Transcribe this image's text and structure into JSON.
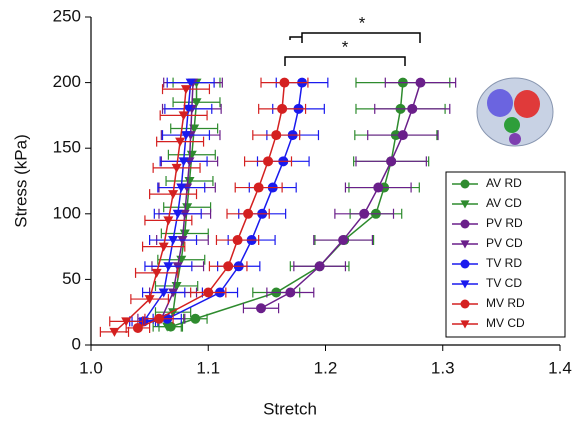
{
  "chart_data": {
    "type": "line",
    "xlabel": "Stretch",
    "ylabel": "Stress (kPa)",
    "xlim": [
      1.0,
      1.4
    ],
    "xticks": [
      {
        "value": 1,
        "label": "1.0"
      },
      1.1,
      1.2,
      1.3,
      1.4
    ],
    "ylim": [
      0,
      250
    ],
    "yticks": [
      0,
      50,
      100,
      150,
      200,
      250
    ],
    "annotations": [
      "*",
      "*"
    ],
    "legend": "lower right",
    "series": [
      {
        "name": "AV RD",
        "color": "#2e8b2e",
        "marker": "circle",
        "y": [
          14,
          20,
          40,
          60,
          80,
          100,
          120,
          140,
          160,
          180,
          200
        ],
        "x": [
          1.068,
          1.089,
          1.158,
          1.195,
          1.216,
          1.243,
          1.25,
          1.256,
          1.26,
          1.264,
          1.266
        ],
        "xerr": [
          0.01,
          0.01,
          0.02,
          0.025,
          0.025,
          0.022,
          0.03,
          0.032,
          0.035,
          0.038,
          0.04
        ]
      },
      {
        "name": "AV CD",
        "color": "#2e8b2e",
        "marker": "triangle",
        "y": [
          14,
          25,
          45,
          65,
          85,
          105,
          125,
          145,
          165,
          185,
          200
        ],
        "x": [
          1.065,
          1.07,
          1.073,
          1.077,
          1.08,
          1.082,
          1.084,
          1.086,
          1.088,
          1.09,
          1.09
        ],
        "xerr": [
          0.012,
          0.015,
          0.018,
          0.02,
          0.02,
          0.02,
          0.02,
          0.02,
          0.02,
          0.02,
          0.02
        ]
      },
      {
        "name": "PV RD",
        "color": "#6a1f8a",
        "marker": "circle",
        "y": [
          28,
          40,
          60,
          80,
          100,
          120,
          140,
          160,
          180,
          200
        ],
        "x": [
          1.145,
          1.17,
          1.195,
          1.215,
          1.233,
          1.245,
          1.256,
          1.266,
          1.274,
          1.281
        ],
        "xerr": [
          0.015,
          0.02,
          0.022,
          0.025,
          0.025,
          0.028,
          0.03,
          0.03,
          0.032,
          0.03
        ]
      },
      {
        "name": "PV CD",
        "color": "#6a1f8a",
        "marker": "triangle",
        "y": [
          20,
          40,
          60,
          80,
          100,
          120,
          140,
          160,
          180,
          200
        ],
        "x": [
          1.06,
          1.07,
          1.074,
          1.078,
          1.08,
          1.082,
          1.084,
          1.085,
          1.086,
          1.087
        ],
        "xerr": [
          0.02,
          0.02,
          0.022,
          0.022,
          0.022,
          0.024,
          0.024,
          0.025,
          0.025,
          0.025
        ]
      },
      {
        "name": "TV RD",
        "color": "#1a1aee",
        "marker": "circle",
        "y": [
          18,
          20,
          40,
          60,
          80,
          100,
          120,
          140,
          160,
          180,
          200
        ],
        "x": [
          1.045,
          1.065,
          1.11,
          1.126,
          1.137,
          1.146,
          1.155,
          1.164,
          1.172,
          1.177,
          1.18
        ],
        "xerr": [
          0.01,
          0.012,
          0.015,
          0.018,
          0.02,
          0.02,
          0.02,
          0.022,
          0.022,
          0.022,
          0.022
        ]
      },
      {
        "name": "TV CD",
        "color": "#1a1aee",
        "marker": "triangle",
        "y": [
          18,
          40,
          60,
          80,
          100,
          120,
          140,
          160,
          180,
          200
        ],
        "x": [
          1.045,
          1.062,
          1.066,
          1.07,
          1.074,
          1.077,
          1.079,
          1.081,
          1.083,
          1.085
        ],
        "xerr": [
          0.012,
          0.018,
          0.02,
          0.02,
          0.02,
          0.02,
          0.02,
          0.02,
          0.02,
          0.02
        ]
      },
      {
        "name": "MV RD",
        "color": "#d42020",
        "marker": "circle",
        "y": [
          13,
          20,
          40,
          60,
          80,
          100,
          120,
          140,
          160,
          180,
          200
        ],
        "x": [
          1.04,
          1.058,
          1.1,
          1.117,
          1.125,
          1.134,
          1.143,
          1.151,
          1.158,
          1.163,
          1.165
        ],
        "xerr": [
          0.01,
          0.012,
          0.015,
          0.016,
          0.018,
          0.018,
          0.02,
          0.02,
          0.02,
          0.02,
          0.02
        ]
      },
      {
        "name": "MV CD",
        "color": "#d42020",
        "marker": "triangle",
        "y": [
          10,
          18,
          35,
          55,
          75,
          95,
          115,
          135,
          155,
          175,
          195
        ],
        "x": [
          1.02,
          1.03,
          1.05,
          1.056,
          1.062,
          1.066,
          1.07,
          1.073,
          1.076,
          1.079,
          1.081
        ],
        "xerr": [
          0.012,
          0.014,
          0.016,
          0.018,
          0.018,
          0.02,
          0.02,
          0.02,
          0.02,
          0.02,
          0.02
        ]
      }
    ]
  }
}
